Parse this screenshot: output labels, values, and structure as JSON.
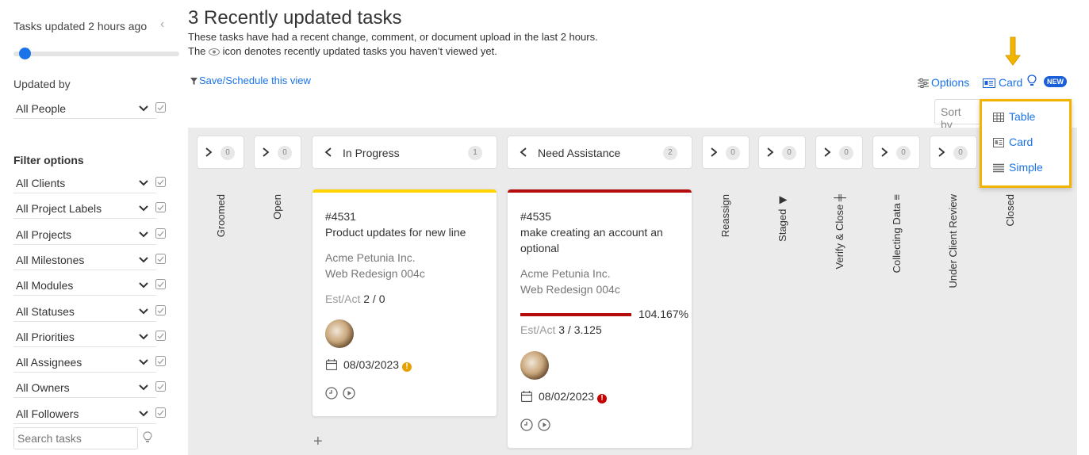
{
  "sidebar": {
    "time_filter_label": "Tasks updated 2 hours ago",
    "time_filter_value": 0.05,
    "updated_by_label": "Updated by",
    "updated_by_value": "All People",
    "filter_options_label": "Filter options",
    "filters": [
      "All Clients",
      "All Project Labels",
      "All Projects",
      "All Milestones",
      "All Modules",
      "All Statuses",
      "All Priorities",
      "All Assignees",
      "All Owners",
      "All Followers"
    ],
    "search_placeholder": "Search tasks"
  },
  "header": {
    "title": "3 Recently updated tasks",
    "desc_line1": "These tasks have had a recent change, comment, or document upload in the last 2 hours.",
    "desc_line2_pre": "The",
    "desc_line2_post": "icon denotes recently updated tasks you haven’t viewed yet.",
    "save_view": "Save/Schedule this view",
    "options": "Options",
    "view_mode": "Card",
    "new_badge": "NEW",
    "sort_by": "Sort by"
  },
  "view_menu": {
    "items": [
      "Table",
      "Card",
      "Simple"
    ]
  },
  "board": {
    "collapsed_heads": [
      {
        "count": "0"
      },
      {
        "count": "0"
      }
    ],
    "columns": [
      {
        "name": "In Progress",
        "count": "1"
      },
      {
        "name": "Need Assistance",
        "count": "2"
      }
    ],
    "right_heads": [
      {
        "count": "0"
      },
      {
        "count": "0"
      },
      {
        "count": "0"
      },
      {
        "count": "0"
      },
      {
        "count": "0"
      }
    ],
    "vertical_labels": {
      "groomed": "Groomed",
      "open": "Open",
      "reassign": "Reassign",
      "staged": "Staged ◀",
      "verify": "Verify & Close ╪",
      "collecting": "Collecting Data ≡",
      "review": "Under Client Review",
      "closed": "Closed"
    },
    "cards": [
      {
        "id": "#4531",
        "title": "Product updates for new line",
        "client": "Acme Petunia Inc.",
        "project": "Web Redesign 004c",
        "est_label": "Est/Act",
        "est_value": "2 / 0",
        "due": "08/03/2023",
        "warn_color": "#e6a100",
        "bar_color": "#ffd400"
      },
      {
        "id": "#4535",
        "title_line1": "make creating an account an",
        "title_line2": "optional",
        "client": "Acme Petunia Inc.",
        "project": "Web Redesign 004c",
        "progress": 1.0,
        "progress_label": "104.167%",
        "est_label": "Est/Act",
        "est_value": "3 / 3.125",
        "due": "08/02/2023",
        "warn_color": "#c40000",
        "bar_color": "#b30d0d"
      }
    ],
    "add_label": "+"
  }
}
